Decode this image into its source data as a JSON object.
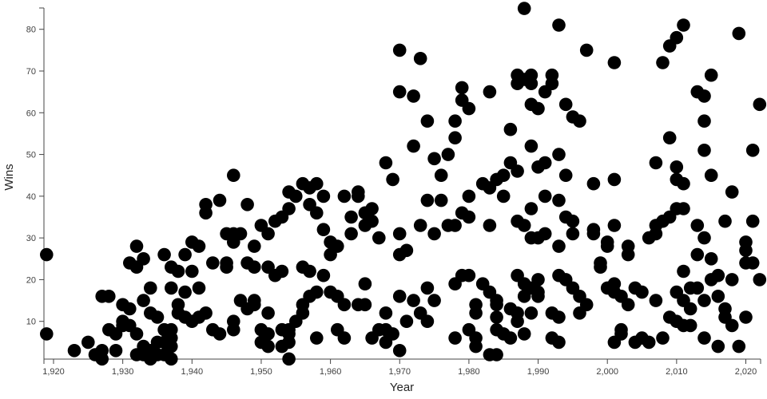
{
  "chart_data": {
    "type": "scatter",
    "title": "",
    "xlabel": "Year",
    "ylabel": "Wins",
    "x_domain": [
      1918.6,
      2022.1
    ],
    "y_domain": [
      0,
      85.1
    ],
    "grid": false,
    "legend": null,
    "point_color": "#000000",
    "point_radius": 8.3,
    "x_ticks": [
      {
        "value": 1920,
        "label": "1,920"
      },
      {
        "value": 1930,
        "label": "1,930"
      },
      {
        "value": 1940,
        "label": "1,940"
      },
      {
        "value": 1950,
        "label": "1,950"
      },
      {
        "value": 1960,
        "label": "1,960"
      },
      {
        "value": 1970,
        "label": "1,970"
      },
      {
        "value": 1980,
        "label": "1,980"
      },
      {
        "value": 1990,
        "label": "1,990"
      },
      {
        "value": 2000,
        "label": "2,000"
      },
      {
        "value": 2010,
        "label": "2,010"
      },
      {
        "value": 2020,
        "label": "2,020"
      }
    ],
    "y_ticks": [
      {
        "value": 10,
        "label": "10"
      },
      {
        "value": 20,
        "label": "20"
      },
      {
        "value": 30,
        "label": "30"
      },
      {
        "value": 40,
        "label": "40"
      },
      {
        "value": 50,
        "label": "50"
      },
      {
        "value": 60,
        "label": "60"
      },
      {
        "value": 70,
        "label": "70"
      },
      {
        "value": 80,
        "label": "80"
      }
    ],
    "points": [
      [
        1919,
        26
      ],
      [
        1919,
        7
      ],
      [
        1923,
        3
      ],
      [
        1925,
        5
      ],
      [
        1926,
        2
      ],
      [
        1927,
        16
      ],
      [
        1927,
        3
      ],
      [
        1927,
        1
      ],
      [
        1928,
        16
      ],
      [
        1928,
        8
      ],
      [
        1929,
        7
      ],
      [
        1929,
        3
      ],
      [
        1930,
        14
      ],
      [
        1930,
        10
      ],
      [
        1930,
        9
      ],
      [
        1931,
        24
      ],
      [
        1931,
        13
      ],
      [
        1931,
        9
      ],
      [
        1932,
        28
      ],
      [
        1932,
        23
      ],
      [
        1932,
        7
      ],
      [
        1932,
        2
      ],
      [
        1933,
        25
      ],
      [
        1933,
        15
      ],
      [
        1933,
        4
      ],
      [
        1933,
        2
      ],
      [
        1934,
        18
      ],
      [
        1934,
        12
      ],
      [
        1934,
        3
      ],
      [
        1934,
        1
      ],
      [
        1935,
        11
      ],
      [
        1935,
        5
      ],
      [
        1935,
        2
      ],
      [
        1936,
        26
      ],
      [
        1936,
        8
      ],
      [
        1936,
        5
      ],
      [
        1936,
        2
      ],
      [
        1937,
        23
      ],
      [
        1937,
        18
      ],
      [
        1937,
        8
      ],
      [
        1937,
        6
      ],
      [
        1937,
        4
      ],
      [
        1937,
        1
      ],
      [
        1938,
        22
      ],
      [
        1938,
        14
      ],
      [
        1938,
        12
      ],
      [
        1939,
        26
      ],
      [
        1939,
        17
      ],
      [
        1939,
        11
      ],
      [
        1940,
        29
      ],
      [
        1940,
        22
      ],
      [
        1940,
        10
      ],
      [
        1941,
        28
      ],
      [
        1941,
        18
      ],
      [
        1941,
        11
      ],
      [
        1942,
        38
      ],
      [
        1942,
        36
      ],
      [
        1942,
        12
      ],
      [
        1943,
        24
      ],
      [
        1943,
        8
      ],
      [
        1944,
        39
      ],
      [
        1944,
        7
      ],
      [
        1945,
        31
      ],
      [
        1945,
        24
      ],
      [
        1945,
        23
      ],
      [
        1946,
        45
      ],
      [
        1946,
        31
      ],
      [
        1946,
        29
      ],
      [
        1946,
        10
      ],
      [
        1946,
        8
      ],
      [
        1947,
        31
      ],
      [
        1947,
        15
      ],
      [
        1948,
        38
      ],
      [
        1948,
        24
      ],
      [
        1948,
        13
      ],
      [
        1949,
        28
      ],
      [
        1949,
        23
      ],
      [
        1949,
        15
      ],
      [
        1949,
        14
      ],
      [
        1950,
        33
      ],
      [
        1950,
        8
      ],
      [
        1950,
        5
      ],
      [
        1951,
        31
      ],
      [
        1951,
        23
      ],
      [
        1951,
        12
      ],
      [
        1951,
        7
      ],
      [
        1951,
        4
      ],
      [
        1952,
        34
      ],
      [
        1952,
        21
      ],
      [
        1953,
        35
      ],
      [
        1953,
        22
      ],
      [
        1953,
        8
      ],
      [
        1953,
        4
      ],
      [
        1954,
        41
      ],
      [
        1954,
        37
      ],
      [
        1954,
        8
      ],
      [
        1954,
        7
      ],
      [
        1954,
        5
      ],
      [
        1954,
        1
      ],
      [
        1955,
        40
      ],
      [
        1955,
        10
      ],
      [
        1956,
        43
      ],
      [
        1956,
        23
      ],
      [
        1956,
        14
      ],
      [
        1956,
        12
      ],
      [
        1957,
        42
      ],
      [
        1957,
        38
      ],
      [
        1957,
        22
      ],
      [
        1957,
        16
      ],
      [
        1958,
        43
      ],
      [
        1958,
        36
      ],
      [
        1958,
        17
      ],
      [
        1958,
        6
      ],
      [
        1959,
        40
      ],
      [
        1959,
        32
      ],
      [
        1959,
        21
      ],
      [
        1960,
        29
      ],
      [
        1960,
        26
      ],
      [
        1960,
        17
      ],
      [
        1961,
        28
      ],
      [
        1961,
        16
      ],
      [
        1961,
        8
      ],
      [
        1962,
        40
      ],
      [
        1962,
        14
      ],
      [
        1962,
        6
      ],
      [
        1963,
        35
      ],
      [
        1963,
        31
      ],
      [
        1964,
        41
      ],
      [
        1964,
        40
      ],
      [
        1964,
        14
      ],
      [
        1965,
        36
      ],
      [
        1965,
        33
      ],
      [
        1965,
        19
      ],
      [
        1965,
        14
      ],
      [
        1966,
        37
      ],
      [
        1966,
        34
      ],
      [
        1966,
        6
      ],
      [
        1967,
        30
      ],
      [
        1967,
        8
      ],
      [
        1968,
        48
      ],
      [
        1968,
        12
      ],
      [
        1968,
        8
      ],
      [
        1968,
        5
      ],
      [
        1969,
        44
      ],
      [
        1969,
        7
      ],
      [
        1970,
        75
      ],
      [
        1970,
        65
      ],
      [
        1970,
        31
      ],
      [
        1970,
        26
      ],
      [
        1970,
        16
      ],
      [
        1970,
        3
      ],
      [
        1971,
        27
      ],
      [
        1971,
        10
      ],
      [
        1972,
        64
      ],
      [
        1972,
        52
      ],
      [
        1972,
        15
      ],
      [
        1973,
        73
      ],
      [
        1973,
        33
      ],
      [
        1973,
        12
      ],
      [
        1974,
        58
      ],
      [
        1974,
        39
      ],
      [
        1974,
        18
      ],
      [
        1974,
        10
      ],
      [
        1975,
        49
      ],
      [
        1975,
        31
      ],
      [
        1975,
        15
      ],
      [
        1976,
        45
      ],
      [
        1976,
        39
      ],
      [
        1977,
        50
      ],
      [
        1977,
        33
      ],
      [
        1978,
        58
      ],
      [
        1978,
        54
      ],
      [
        1978,
        33
      ],
      [
        1978,
        19
      ],
      [
        1978,
        6
      ],
      [
        1979,
        66
      ],
      [
        1979,
        63
      ],
      [
        1979,
        36
      ],
      [
        1979,
        21
      ],
      [
        1980,
        61
      ],
      [
        1980,
        40
      ],
      [
        1980,
        35
      ],
      [
        1980,
        21
      ],
      [
        1980,
        8
      ],
      [
        1981,
        14
      ],
      [
        1981,
        12
      ],
      [
        1981,
        6
      ],
      [
        1981,
        4
      ],
      [
        1982,
        43
      ],
      [
        1982,
        19
      ],
      [
        1983,
        65
      ],
      [
        1983,
        42
      ],
      [
        1983,
        33
      ],
      [
        1983,
        17
      ],
      [
        1983,
        2
      ],
      [
        1984,
        44
      ],
      [
        1984,
        15
      ],
      [
        1984,
        14
      ],
      [
        1984,
        11
      ],
      [
        1984,
        8
      ],
      [
        1984,
        2
      ],
      [
        1985,
        45
      ],
      [
        1985,
        40
      ],
      [
        1985,
        7
      ],
      [
        1986,
        56
      ],
      [
        1986,
        48
      ],
      [
        1986,
        13
      ],
      [
        1986,
        6
      ],
      [
        1987,
        69
      ],
      [
        1987,
        67
      ],
      [
        1987,
        46
      ],
      [
        1987,
        34
      ],
      [
        1987,
        21
      ],
      [
        1987,
        12
      ],
      [
        1987,
        10
      ],
      [
        1988,
        85
      ],
      [
        1988,
        68
      ],
      [
        1988,
        33
      ],
      [
        1988,
        19
      ],
      [
        1988,
        16
      ],
      [
        1988,
        7
      ],
      [
        1989,
        69
      ],
      [
        1989,
        67
      ],
      [
        1989,
        62
      ],
      [
        1989,
        52
      ],
      [
        1989,
        37
      ],
      [
        1989,
        30
      ],
      [
        1989,
        18
      ],
      [
        1989,
        12
      ],
      [
        1990,
        61
      ],
      [
        1990,
        47
      ],
      [
        1990,
        30
      ],
      [
        1990,
        20
      ],
      [
        1990,
        17
      ],
      [
        1990,
        16
      ],
      [
        1991,
        65
      ],
      [
        1991,
        48
      ],
      [
        1991,
        40
      ],
      [
        1991,
        31
      ],
      [
        1992,
        69
      ],
      [
        1992,
        67
      ],
      [
        1992,
        12
      ],
      [
        1992,
        6
      ],
      [
        1993,
        81
      ],
      [
        1993,
        50
      ],
      [
        1993,
        39
      ],
      [
        1993,
        28
      ],
      [
        1993,
        21
      ],
      [
        1993,
        11
      ],
      [
        1993,
        5
      ],
      [
        1994,
        62
      ],
      [
        1994,
        45
      ],
      [
        1994,
        35
      ],
      [
        1994,
        20
      ],
      [
        1995,
        59
      ],
      [
        1995,
        34
      ],
      [
        1995,
        31
      ],
      [
        1995,
        18
      ],
      [
        1996,
        58
      ],
      [
        1996,
        16
      ],
      [
        1996,
        12
      ],
      [
        1997,
        75
      ],
      [
        1997,
        14
      ],
      [
        1998,
        43
      ],
      [
        1998,
        32
      ],
      [
        1998,
        31
      ],
      [
        1999,
        24
      ],
      [
        1999,
        23
      ],
      [
        2000,
        29
      ],
      [
        2000,
        28
      ],
      [
        2000,
        18
      ],
      [
        2001,
        72
      ],
      [
        2001,
        44
      ],
      [
        2001,
        33
      ],
      [
        2001,
        19
      ],
      [
        2001,
        17
      ],
      [
        2001,
        5
      ],
      [
        2002,
        16
      ],
      [
        2002,
        8
      ],
      [
        2002,
        7
      ],
      [
        2003,
        28
      ],
      [
        2003,
        26
      ],
      [
        2003,
        14
      ],
      [
        2004,
        18
      ],
      [
        2004,
        5
      ],
      [
        2005,
        17
      ],
      [
        2005,
        6
      ],
      [
        2006,
        30
      ],
      [
        2006,
        5
      ],
      [
        2007,
        48
      ],
      [
        2007,
        33
      ],
      [
        2007,
        31
      ],
      [
        2007,
        15
      ],
      [
        2008,
        72
      ],
      [
        2008,
        34
      ],
      [
        2008,
        6
      ],
      [
        2009,
        76
      ],
      [
        2009,
        54
      ],
      [
        2009,
        35
      ],
      [
        2009,
        11
      ],
      [
        2010,
        78
      ],
      [
        2010,
        47
      ],
      [
        2010,
        44
      ],
      [
        2010,
        37
      ],
      [
        2010,
        17
      ],
      [
        2010,
        10
      ],
      [
        2011,
        81
      ],
      [
        2011,
        43
      ],
      [
        2011,
        37
      ],
      [
        2011,
        22
      ],
      [
        2011,
        15
      ],
      [
        2011,
        9
      ],
      [
        2012,
        18
      ],
      [
        2012,
        13
      ],
      [
        2012,
        9
      ],
      [
        2013,
        65
      ],
      [
        2013,
        33
      ],
      [
        2013,
        26
      ],
      [
        2013,
        18
      ],
      [
        2014,
        64
      ],
      [
        2014,
        58
      ],
      [
        2014,
        51
      ],
      [
        2014,
        30
      ],
      [
        2014,
        15
      ],
      [
        2014,
        6
      ],
      [
        2015,
        69
      ],
      [
        2015,
        45
      ],
      [
        2015,
        25
      ],
      [
        2015,
        20
      ],
      [
        2016,
        21
      ],
      [
        2016,
        16
      ],
      [
        2016,
        4
      ],
      [
        2017,
        34
      ],
      [
        2017,
        13
      ],
      [
        2017,
        11
      ],
      [
        2018,
        41
      ],
      [
        2018,
        20
      ],
      [
        2018,
        9
      ],
      [
        2019,
        79
      ],
      [
        2019,
        4
      ],
      [
        2020,
        29
      ],
      [
        2020,
        27
      ],
      [
        2020,
        24
      ],
      [
        2020,
        11
      ],
      [
        2021,
        51
      ],
      [
        2021,
        34
      ],
      [
        2021,
        24
      ],
      [
        2022,
        62
      ],
      [
        2022,
        20
      ]
    ]
  },
  "colors": {
    "background": "#ffffff",
    "axis": "#444444",
    "tick_label": "#414141",
    "axis_title": "#252525",
    "point": "#000000"
  }
}
